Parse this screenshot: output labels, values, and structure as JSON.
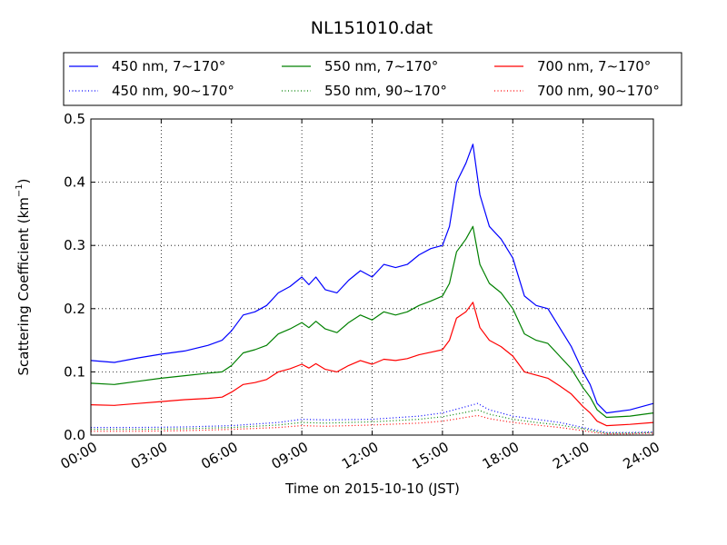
{
  "chart_data": {
    "type": "line",
    "title": "NL151010.dat",
    "xlabel": "Time on 2015-10-10 (JST)",
    "ylabel_main": "Scattering Coefficient (km",
    "ylabel_sup": "−1",
    "ylabel_close": ")",
    "xlim": [
      0,
      24
    ],
    "ylim": [
      0,
      0.5
    ],
    "x_ticks": [
      0,
      3,
      6,
      9,
      12,
      15,
      18,
      21,
      24
    ],
    "x_tick_labels": [
      "00:00",
      "03:00",
      "06:00",
      "09:00",
      "12:00",
      "15:00",
      "18:00",
      "21:00",
      "24:00"
    ],
    "y_ticks": [
      0.0,
      0.1,
      0.2,
      0.3,
      0.4,
      0.5
    ],
    "y_tick_labels": [
      "0.0",
      "0.1",
      "0.2",
      "0.3",
      "0.4",
      "0.5"
    ],
    "grid": true,
    "legend_position": "top",
    "x_units": "hours since 00:00",
    "series": [
      {
        "name": "450 nm, 7∼170°",
        "color": "#0000ff",
        "style": "solid",
        "x": [
          0,
          1,
          2,
          3,
          4,
          5,
          5.6,
          6,
          6.5,
          7,
          7.5,
          8,
          8.5,
          9,
          9.3,
          9.6,
          10,
          10.5,
          11,
          11.5,
          12,
          12.5,
          13,
          13.5,
          14,
          14.5,
          15,
          15.3,
          15.6,
          16,
          16.3,
          16.6,
          17,
          17.5,
          18,
          18.5,
          19,
          19.5,
          20,
          20.5,
          21,
          21.3,
          21.6,
          22,
          23,
          24
        ],
        "y": [
          0.118,
          0.115,
          0.122,
          0.128,
          0.133,
          0.142,
          0.15,
          0.165,
          0.19,
          0.195,
          0.205,
          0.225,
          0.235,
          0.25,
          0.238,
          0.25,
          0.23,
          0.225,
          0.245,
          0.26,
          0.25,
          0.27,
          0.265,
          0.27,
          0.285,
          0.295,
          0.3,
          0.33,
          0.4,
          0.43,
          0.46,
          0.38,
          0.33,
          0.31,
          0.28,
          0.22,
          0.205,
          0.2,
          0.17,
          0.14,
          0.1,
          0.08,
          0.05,
          0.035,
          0.04,
          0.05
        ]
      },
      {
        "name": "550 nm, 7∼170°",
        "color": "#008000",
        "style": "solid",
        "x": [
          0,
          1,
          2,
          3,
          4,
          5,
          5.6,
          6,
          6.5,
          7,
          7.5,
          8,
          8.5,
          9,
          9.3,
          9.6,
          10,
          10.5,
          11,
          11.5,
          12,
          12.5,
          13,
          13.5,
          14,
          14.5,
          15,
          15.3,
          15.6,
          16,
          16.3,
          16.6,
          17,
          17.5,
          18,
          18.5,
          19,
          19.5,
          20,
          20.5,
          21,
          21.3,
          21.6,
          22,
          23,
          24
        ],
        "y": [
          0.082,
          0.08,
          0.085,
          0.09,
          0.094,
          0.098,
          0.1,
          0.11,
          0.13,
          0.135,
          0.142,
          0.16,
          0.168,
          0.178,
          0.17,
          0.18,
          0.168,
          0.162,
          0.178,
          0.19,
          0.182,
          0.195,
          0.19,
          0.195,
          0.205,
          0.212,
          0.22,
          0.24,
          0.29,
          0.31,
          0.33,
          0.27,
          0.24,
          0.225,
          0.2,
          0.16,
          0.15,
          0.145,
          0.125,
          0.105,
          0.075,
          0.06,
          0.04,
          0.028,
          0.03,
          0.035
        ]
      },
      {
        "name": "700 nm, 7∼170°",
        "color": "#ff0000",
        "style": "solid",
        "x": [
          0,
          1,
          2,
          3,
          4,
          5,
          5.6,
          6,
          6.5,
          7,
          7.5,
          8,
          8.5,
          9,
          9.3,
          9.6,
          10,
          10.5,
          11,
          11.5,
          12,
          12.5,
          13,
          13.5,
          14,
          14.5,
          15,
          15.3,
          15.6,
          16,
          16.3,
          16.6,
          17,
          17.5,
          18,
          18.5,
          19,
          19.5,
          20,
          20.5,
          21,
          21.3,
          21.6,
          22,
          23,
          24
        ],
        "y": [
          0.048,
          0.047,
          0.05,
          0.053,
          0.056,
          0.058,
          0.06,
          0.068,
          0.08,
          0.083,
          0.088,
          0.1,
          0.105,
          0.112,
          0.106,
          0.113,
          0.104,
          0.1,
          0.11,
          0.118,
          0.112,
          0.12,
          0.118,
          0.121,
          0.127,
          0.131,
          0.135,
          0.15,
          0.185,
          0.195,
          0.21,
          0.17,
          0.15,
          0.14,
          0.125,
          0.1,
          0.095,
          0.09,
          0.078,
          0.065,
          0.045,
          0.035,
          0.022,
          0.015,
          0.017,
          0.02
        ]
      },
      {
        "name": "450 nm, 90∼170°",
        "color": "#0000ff",
        "style": "dotted",
        "x": [
          0,
          2,
          4,
          6,
          8,
          9,
          10,
          12,
          14,
          15,
          16,
          16.5,
          17,
          18,
          19,
          20,
          21,
          21.5,
          22,
          23,
          24
        ],
        "y": [
          0.012,
          0.012,
          0.013,
          0.015,
          0.02,
          0.025,
          0.024,
          0.025,
          0.03,
          0.035,
          0.045,
          0.05,
          0.04,
          0.03,
          0.025,
          0.02,
          0.012,
          0.008,
          0.004,
          0.004,
          0.005
        ]
      },
      {
        "name": "550 nm, 90∼170°",
        "color": "#008000",
        "style": "dotted",
        "x": [
          0,
          2,
          4,
          6,
          8,
          9,
          10,
          12,
          14,
          15,
          16,
          16.5,
          17,
          18,
          19,
          20,
          21,
          21.5,
          22,
          23,
          24
        ],
        "y": [
          0.009,
          0.009,
          0.01,
          0.012,
          0.016,
          0.02,
          0.019,
          0.021,
          0.025,
          0.029,
          0.036,
          0.04,
          0.033,
          0.025,
          0.02,
          0.016,
          0.01,
          0.006,
          0.003,
          0.003,
          0.004
        ]
      },
      {
        "name": "700 nm, 90∼170°",
        "color": "#ff0000",
        "style": "dotted",
        "x": [
          0,
          2,
          4,
          6,
          8,
          9,
          10,
          12,
          14,
          15,
          16,
          16.5,
          17,
          18,
          19,
          20,
          21,
          21.5,
          22,
          23,
          24
        ],
        "y": [
          0.006,
          0.006,
          0.007,
          0.009,
          0.012,
          0.015,
          0.014,
          0.016,
          0.019,
          0.022,
          0.028,
          0.031,
          0.026,
          0.02,
          0.016,
          0.012,
          0.007,
          0.004,
          0.002,
          0.002,
          0.003
        ]
      }
    ]
  }
}
